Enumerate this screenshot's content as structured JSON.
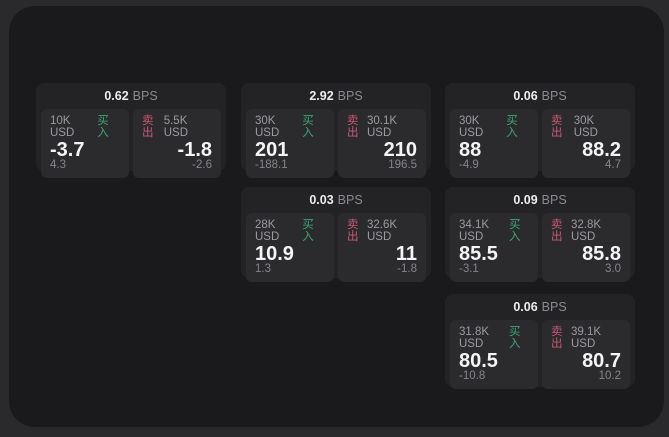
{
  "page": {
    "background": "#2a2a2d",
    "panel_background": "#1a1a1c",
    "card_background": "#232326",
    "tile_background": "#2b2b2e"
  },
  "labels": {
    "buy": "买入",
    "sell": "卖出",
    "bps_unit": "BPS"
  },
  "colors": {
    "buy_accent": "#3aa772",
    "sell_accent": "#cd5672",
    "value_text": "#f4f4f5",
    "muted_text": "#8a8a8f"
  },
  "cards": [
    {
      "bps": "0.62",
      "buy": {
        "size": "10K USD",
        "value": "-3.7",
        "sub": "4.3"
      },
      "sell": {
        "size": "5.5K USD",
        "value": "-1.8",
        "sub": "-2.6"
      }
    },
    {
      "bps": "2.92",
      "buy": {
        "size": "30K USD",
        "value": "201",
        "sub": "-188.1"
      },
      "sell": {
        "size": "30.1K USD",
        "value": "210",
        "sub": "196.5"
      }
    },
    {
      "bps": "0.06",
      "buy": {
        "size": "30K USD",
        "value": "88",
        "sub": "-4.9"
      },
      "sell": {
        "size": "30K USD",
        "value": "88.2",
        "sub": "4.7"
      }
    },
    {
      "bps": "0.03",
      "buy": {
        "size": "28K USD",
        "value": "10.9",
        "sub": "1.3"
      },
      "sell": {
        "size": "32.6K USD",
        "value": "11",
        "sub": "-1.8"
      }
    },
    {
      "bps": "0.09",
      "buy": {
        "size": "34.1K USD",
        "value": "85.5",
        "sub": "-3.1"
      },
      "sell": {
        "size": "32.8K USD",
        "value": "85.8",
        "sub": "3.0"
      }
    },
    {
      "bps": "0.06",
      "buy": {
        "size": "31.8K USD",
        "value": "80.5",
        "sub": "-10.8"
      },
      "sell": {
        "size": "39.1K USD",
        "value": "80.7",
        "sub": "10.2"
      }
    }
  ]
}
